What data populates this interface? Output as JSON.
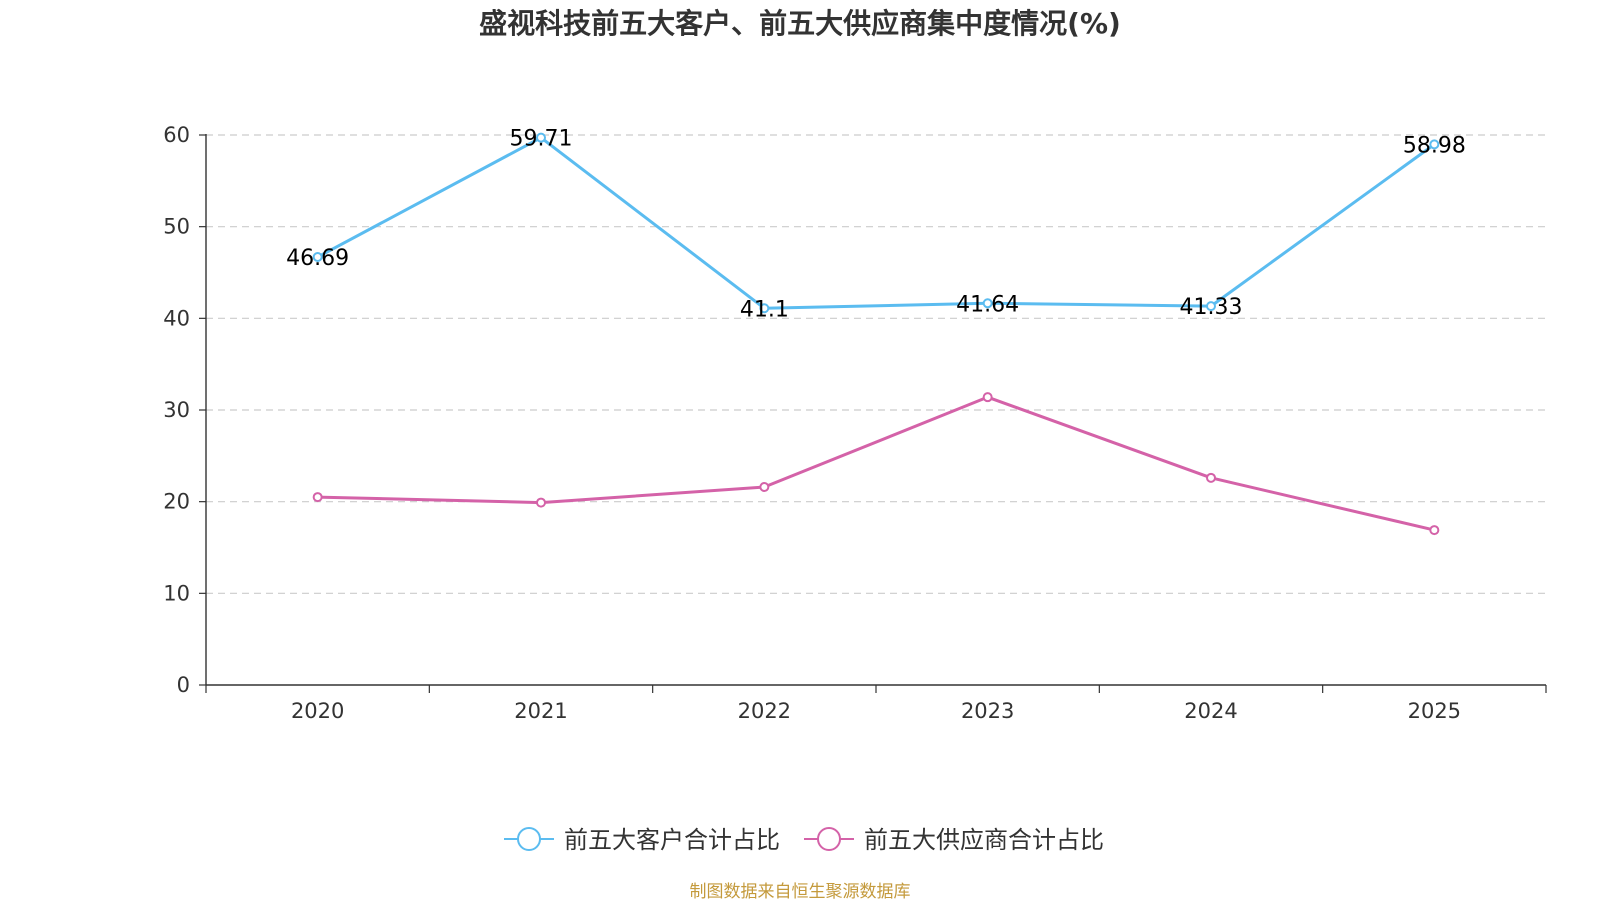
{
  "chart_data": {
    "type": "line",
    "title": "盛视科技前五大客户、前五大供应商集中度情况(%)",
    "xlabel": "",
    "ylabel": "",
    "categories": [
      "2020",
      "2021",
      "2022",
      "2023",
      "2024",
      "2025"
    ],
    "ylim": [
      0,
      60
    ],
    "yticks": [
      0,
      10,
      20,
      30,
      40,
      50,
      60
    ],
    "grid": true,
    "legend_position": "bottom-center",
    "series": [
      {
        "name": "前五大客户合计占比",
        "color": "#5bbcf0",
        "values": [
          46.69,
          59.71,
          41.1,
          41.64,
          41.33,
          58.98
        ],
        "data_labels": [
          "46.69",
          "59.71",
          "41.1",
          "41.64",
          "41.33",
          "58.98"
        ]
      },
      {
        "name": "前五大供应商合计占比",
        "color": "#d462a8",
        "values": [
          20.5,
          19.9,
          21.6,
          31.4,
          22.6,
          16.9
        ]
      }
    ]
  },
  "source": {
    "text": "制图数据来自恒生聚源数据库",
    "color": "#c49a3c"
  },
  "colors": {
    "axis": "#333333",
    "grid": "#cccccc"
  }
}
